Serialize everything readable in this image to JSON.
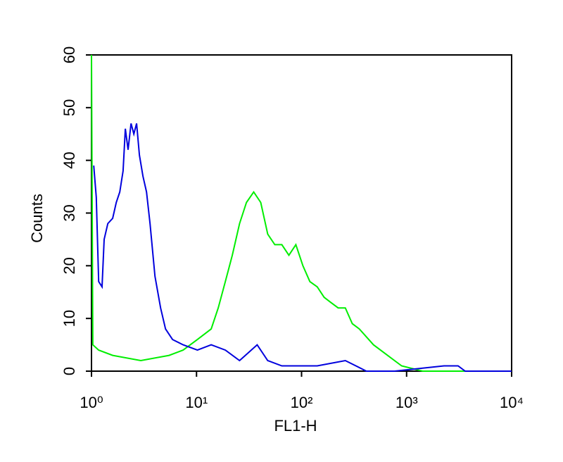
{
  "chart_data": {
    "type": "line",
    "x_label": "FL1-H",
    "y_label": "Counts",
    "xscale": "log",
    "xlim": [
      1,
      10000
    ],
    "xticks": [
      {
        "value": 1,
        "label": "10⁰"
      },
      {
        "value": 10,
        "label": "10¹"
      },
      {
        "value": 100,
        "label": "10²"
      },
      {
        "value": 1000,
        "label": "10³"
      },
      {
        "value": 10000,
        "label": "10⁴"
      }
    ],
    "ylim": [
      0,
      60
    ],
    "yticks": [
      0,
      10,
      20,
      30,
      40,
      50,
      60
    ],
    "grid": false,
    "series": [
      {
        "color": "#00ee00",
        "x": [
          1,
          1.03,
          1.17,
          1.59,
          2.95,
          5.48,
          7.45,
          10.2,
          13.8,
          16.1,
          18.8,
          21.9,
          25.7,
          29.9,
          35,
          40.9,
          47.6,
          55.6,
          64.9,
          75.7,
          88.3,
          103,
          120,
          141,
          164,
          191,
          223,
          261,
          304,
          355,
          484,
          659,
          897,
          1420,
          10000
        ],
        "values": [
          60,
          5,
          4,
          3,
          2,
          3,
          4,
          6,
          8,
          12,
          17,
          22,
          28,
          32,
          34,
          32,
          26,
          24,
          24,
          22,
          24,
          20,
          17,
          16,
          14,
          13,
          12,
          12,
          9,
          8,
          5,
          3,
          1,
          0,
          0
        ]
      },
      {
        "color": "#0000dd",
        "x": [
          1.05,
          1.11,
          1.17,
          1.26,
          1.32,
          1.43,
          1.59,
          1.72,
          1.86,
          2.0,
          2.1,
          2.23,
          2.38,
          2.53,
          2.69,
          2.86,
          3.09,
          3.34,
          3.61,
          4.02,
          4.55,
          5.07,
          5.91,
          7.45,
          10.2,
          13.8,
          18.8,
          25.7,
          37.8,
          47.6,
          64.9,
          88.3,
          141,
          261,
          414,
          769,
          2270,
          3090,
          3610,
          10000
        ],
        "values": [
          39,
          33,
          17,
          16,
          25,
          28,
          29,
          32,
          34,
          38,
          46,
          42,
          47,
          45,
          47,
          41,
          37,
          34,
          28,
          18,
          12,
          8,
          6,
          5,
          4,
          5,
          4,
          2,
          5,
          2,
          1,
          1,
          1,
          2,
          0,
          0,
          1,
          1,
          0,
          0
        ]
      }
    ]
  }
}
